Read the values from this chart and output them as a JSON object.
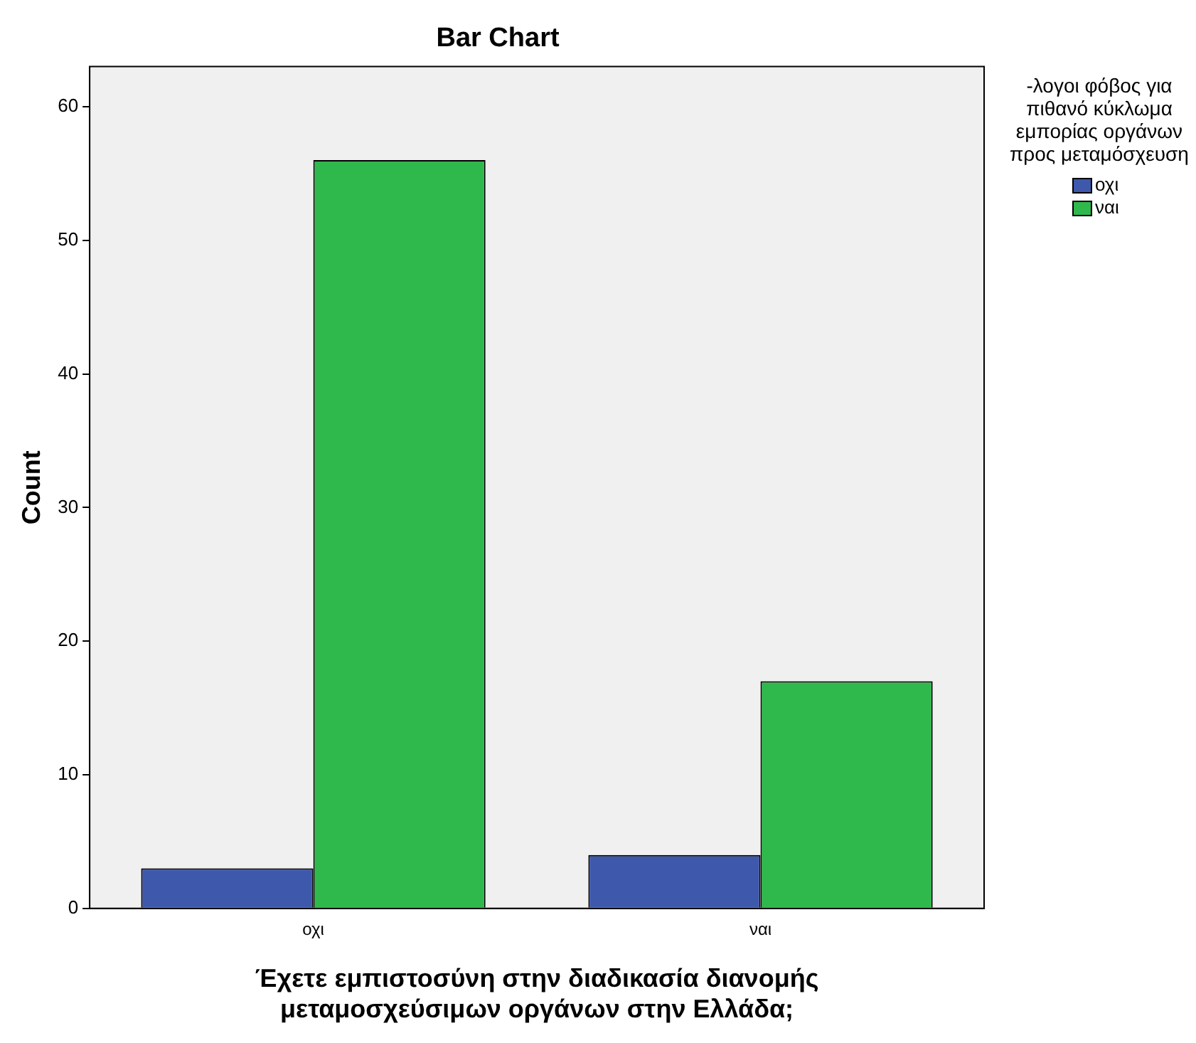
{
  "chart_data": {
    "type": "bar",
    "title": "Bar Chart",
    "xlabel": "Έχετε εμπιστοσύνη στην διαδικασία διανομής μεταμοσχεύσιμων οργάνων στην Ελλάδα;",
    "ylabel": "Count",
    "legend_title": "-λογοι φόβος για πιθανό κύκλωμα εμπορίας οργάνων προς μεταμόσχευση",
    "categories": [
      "οχι",
      "ναι"
    ],
    "series": [
      {
        "name": "οχι",
        "color": "#3e58ac",
        "values": [
          3,
          4
        ]
      },
      {
        "name": "ναι",
        "color": "#2fb84b",
        "values": [
          56,
          17
        ]
      }
    ],
    "ylim": [
      0,
      63
    ],
    "yticks": [
      0,
      10,
      20,
      30,
      40,
      50,
      60
    ],
    "grid": false,
    "legend": "top right"
  }
}
